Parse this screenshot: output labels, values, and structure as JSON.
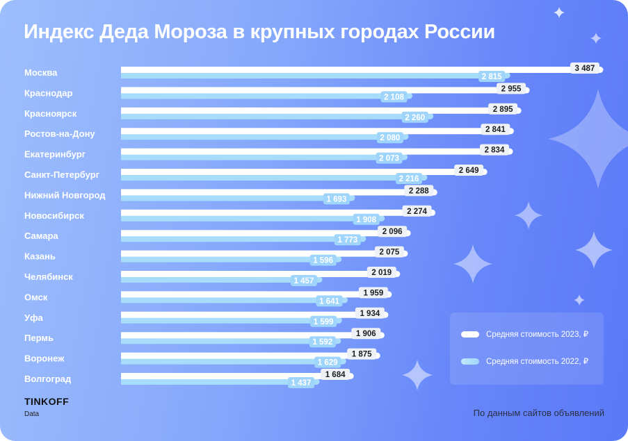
{
  "title": "Индекс Деда Мороза в крупных городах России",
  "colors": {
    "bar_2023": "#ffffff",
    "bar_2022": "#a8dcfb",
    "label_2023_bg": "#eef1f6",
    "background_left": "#9dbefc",
    "background_right": "#5a79f7"
  },
  "chart_data": {
    "type": "bar",
    "orientation": "horizontal",
    "title": "Индекс Деда Мороза в крупных городах России",
    "categories": [
      "Москва",
      "Краснодар",
      "Красноярск",
      "Ростов-на-Дону",
      "Екатеринбург",
      "Санкт-Петербург",
      "Нижний Новгород",
      "Новосибирск",
      "Самара",
      "Казань",
      "Челябинск",
      "Омск",
      "Уфа",
      "Пермь",
      "Воронеж",
      "Волгоград"
    ],
    "series": [
      {
        "name": "Средняя стоимость 2023, ₽",
        "values": [
          3487,
          2955,
          2895,
          2841,
          2834,
          2649,
          2288,
          2274,
          2096,
          2075,
          2019,
          1959,
          1934,
          1906,
          1875,
          1684
        ],
        "labels": [
          "3 487",
          "2 955",
          "2 895",
          "2 841",
          "2 834",
          "2 649",
          "2 288",
          "2 274",
          "2 096",
          "2 075",
          "2 019",
          "1 959",
          "1 934",
          "1 906",
          "1 875",
          "1 684"
        ]
      },
      {
        "name": "Средняя стоимость 2022, ₽",
        "values": [
          2815,
          2108,
          2260,
          2080,
          2073,
          2216,
          1693,
          1908,
          1773,
          1596,
          1457,
          1641,
          1599,
          1592,
          1629,
          1437
        ],
        "labels": [
          "2 815",
          "2 108",
          "2 260",
          "2 080",
          "2 073",
          "2 216",
          "1 693",
          "1 908",
          "1 773",
          "1 596",
          "1 457",
          "1 641",
          "1 599",
          "1 592",
          "1 629",
          "1 437"
        ]
      }
    ],
    "legend_placement": "bottom-right",
    "grid": false
  },
  "legend": {
    "item_2023": "Средняя стоимость 2023, ₽",
    "item_2022": "Средняя стоимость 2022, ₽"
  },
  "footer": {
    "brand": "TINKOFF",
    "brand_sub": "Data",
    "source": "По данным сайтов объявлений"
  }
}
